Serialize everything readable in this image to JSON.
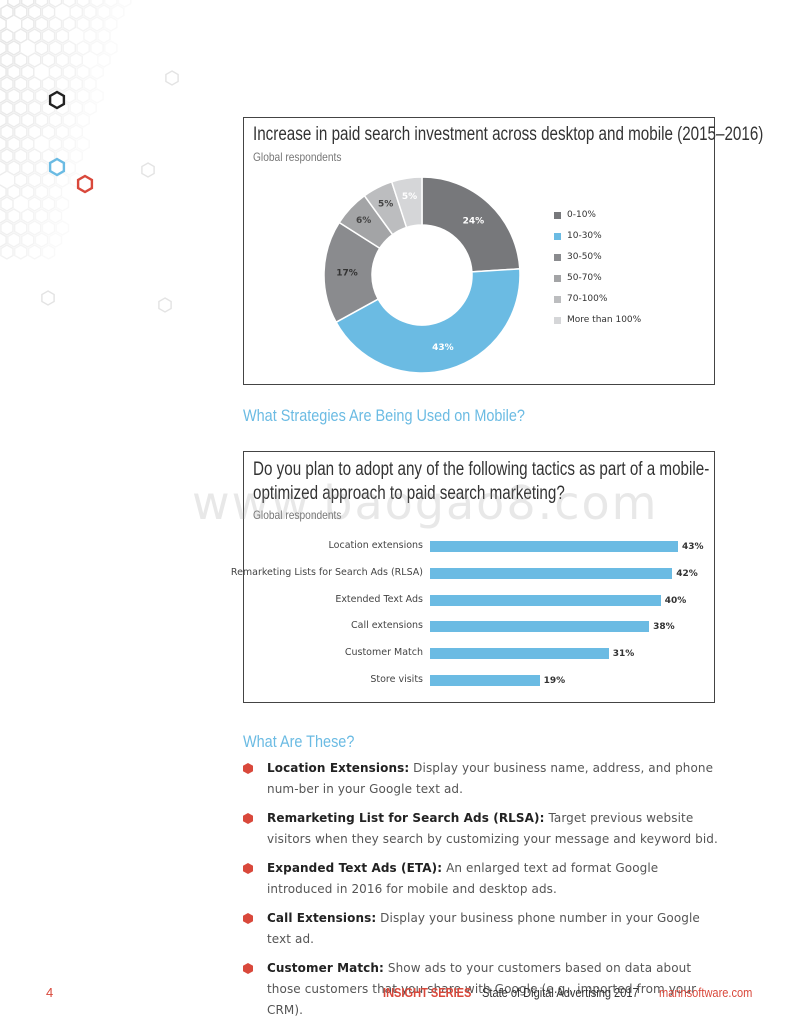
{
  "charts": {
    "donut": {
      "title": "Increase in paid search investment across desktop and mobile (2015–2016)",
      "subtitle": "Global respondents"
    },
    "bars": {
      "title_line1": "Do you plan to adopt any of the following tactics as part of a mobile-",
      "title_line2": "optimized approach to paid search marketing?",
      "subtitle": "Global respondents"
    }
  },
  "chart_data": [
    {
      "type": "pie",
      "title": "Increase in paid search investment across desktop and mobile (2015–2016)",
      "subtitle": "Global respondents",
      "categories": [
        "0-10%",
        "10-30%",
        "30-50%",
        "50-70%",
        "70-100%",
        "More than 100%"
      ],
      "values": [
        24,
        43,
        17,
        6,
        5,
        5
      ],
      "labels": [
        "24%",
        "43%",
        "17%",
        "6%",
        "5%",
        "5%"
      ],
      "colors": [
        "#77787b",
        "#6bbbe3",
        "#8a8b8e",
        "#a3a4a6",
        "#bcbdbf",
        "#d5d6d8"
      ],
      "donut": true,
      "legend_position": "right"
    },
    {
      "type": "bar",
      "orientation": "horizontal",
      "title": "Do you plan to adopt any of the following tactics as part of a mobile-optimized approach to paid search marketing?",
      "subtitle": "Global respondents",
      "categories": [
        "Location extensions",
        "Remarketing Lists for Search Ads (RLSA)",
        "Extended Text Ads",
        "Call extensions",
        "Customer Match",
        "Store visits"
      ],
      "values": [
        43,
        42,
        40,
        38,
        31,
        19
      ],
      "labels": [
        "43%",
        "42%",
        "40%",
        "38%",
        "31%",
        "19%"
      ],
      "color": "#6bbbe3"
    }
  ],
  "sections": {
    "strategies_heading": "What Strategies Are Being Used on Mobile?",
    "what_are_these_heading": "What Are These?"
  },
  "definitions": [
    {
      "term": "Location Extensions:",
      "text": " Display your business name, address, and phone num-ber in your Google text ad."
    },
    {
      "term": "Remarketing List for Search Ads (RLSA):",
      "text": " Target previous website visitors when they search by customizing your message and keyword bid."
    },
    {
      "term": "Expanded Text Ads (ETA):",
      "text": " An enlarged text ad format Google introduced in 2016 for mobile and desktop ads."
    },
    {
      "term": "Call Extensions:",
      "text": " Display your business phone number in your Google text ad."
    },
    {
      "term": "Customer Match:",
      "text": " Show ads to your customers based on data about those customers that you share with Google (e.g., imported from your CRM)."
    }
  ],
  "watermark": "www.baogao8.com",
  "footer": {
    "page_number": "4",
    "series": "INSIGHT SERIES",
    "doc_title": "State of Digital Advertising 2017",
    "url": "marinsoftware.com"
  },
  "colors": {
    "accent_blue": "#6bbbe3",
    "accent_red": "#d9483b",
    "text_dark": "#333333"
  }
}
